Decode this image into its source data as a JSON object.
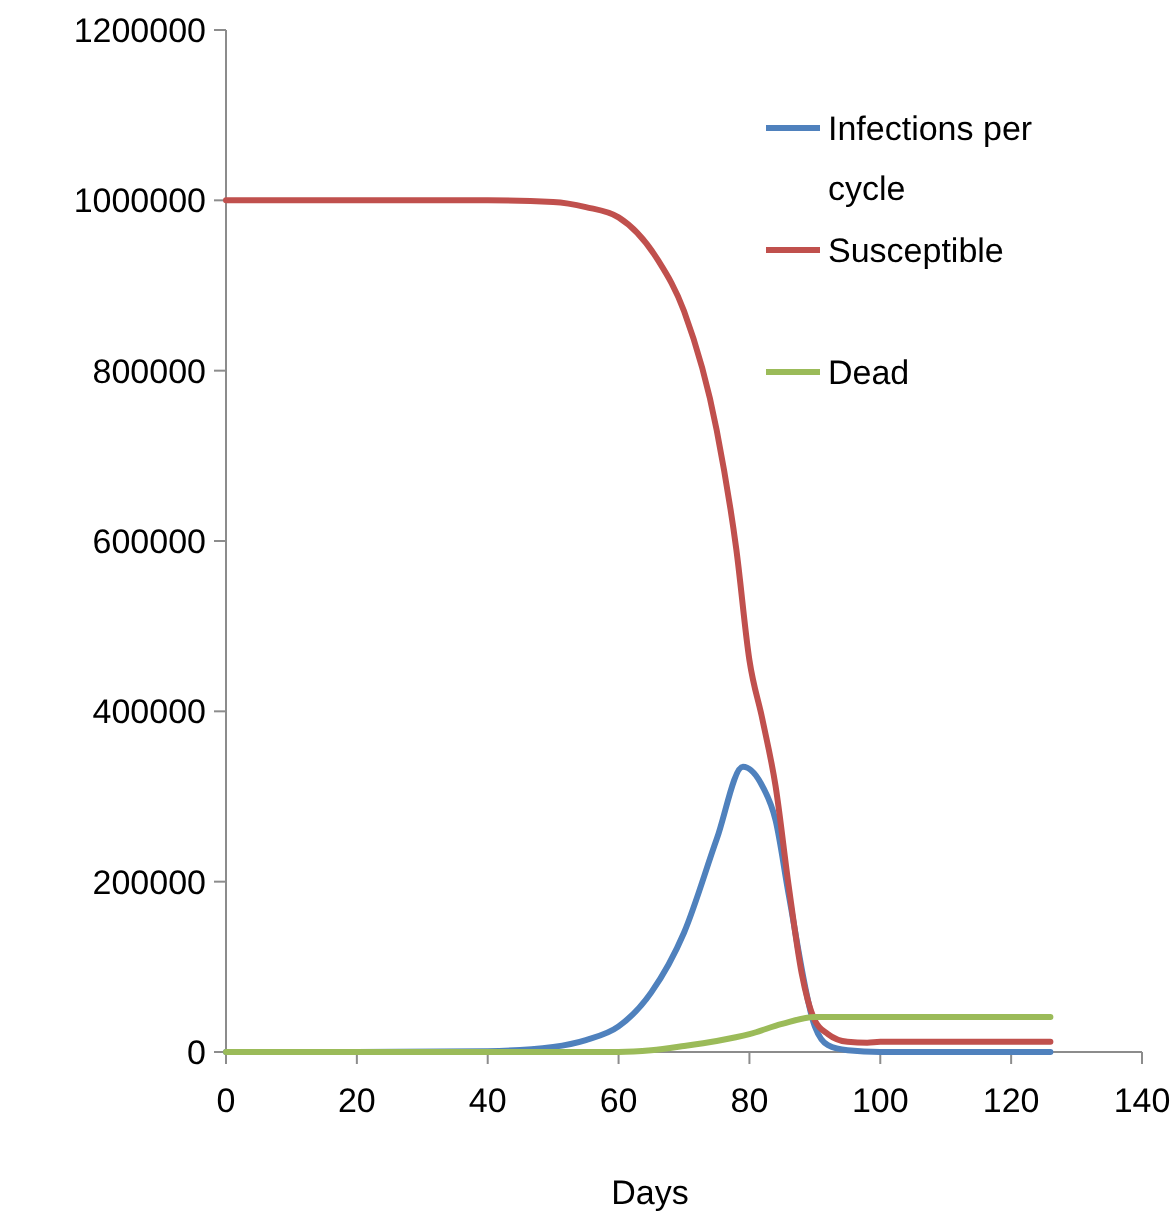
{
  "chart_data": {
    "type": "line",
    "xlabel": "Days",
    "xlim": [
      0,
      140
    ],
    "xticks": [
      0,
      20,
      40,
      60,
      80,
      100,
      120,
      140
    ],
    "ylim": [
      0,
      1200000
    ],
    "yticks": [
      0,
      200000,
      400000,
      600000,
      800000,
      1000000,
      1200000
    ],
    "grid": false,
    "legend": "top right",
    "marker": "none",
    "line_style": "solid",
    "series": [
      {
        "name": "Infections per cycle",
        "color": "#4f81bd",
        "x": [
          0,
          20,
          40,
          50,
          55,
          60,
          65,
          70,
          75,
          79,
          82,
          84,
          86,
          90,
          92,
          95,
          100,
          110,
          126
        ],
        "values": [
          0,
          0,
          1000,
          6000,
          14000,
          30000,
          70000,
          140000,
          250000,
          335000,
          312000,
          272000,
          185000,
          30000,
          8000,
          2000,
          0,
          0,
          0
        ]
      },
      {
        "name": "Susceptible",
        "color": "#c0504d",
        "x": [
          0,
          20,
          40,
          50,
          55,
          60,
          66,
          70,
          75,
          78,
          80,
          82,
          84,
          86,
          88,
          90,
          92,
          95,
          98,
          100,
          110,
          126
        ],
        "values": [
          1000000,
          1000000,
          1000000,
          998000,
          992000,
          980000,
          930000,
          870000,
          730000,
          590000,
          460000,
          390000,
          312000,
          195000,
          92000,
          37000,
          21000,
          12000,
          11000,
          12000,
          12000,
          12000
        ]
      },
      {
        "name": "Dead",
        "color": "#9bbb59",
        "x": [
          0,
          40,
          60,
          65,
          70,
          75,
          80,
          85,
          90,
          92,
          100,
          110,
          126
        ],
        "values": [
          0,
          0,
          0,
          2000,
          7000,
          13000,
          21000,
          33000,
          41000,
          41000,
          41000,
          41000,
          41000
        ]
      }
    ]
  }
}
